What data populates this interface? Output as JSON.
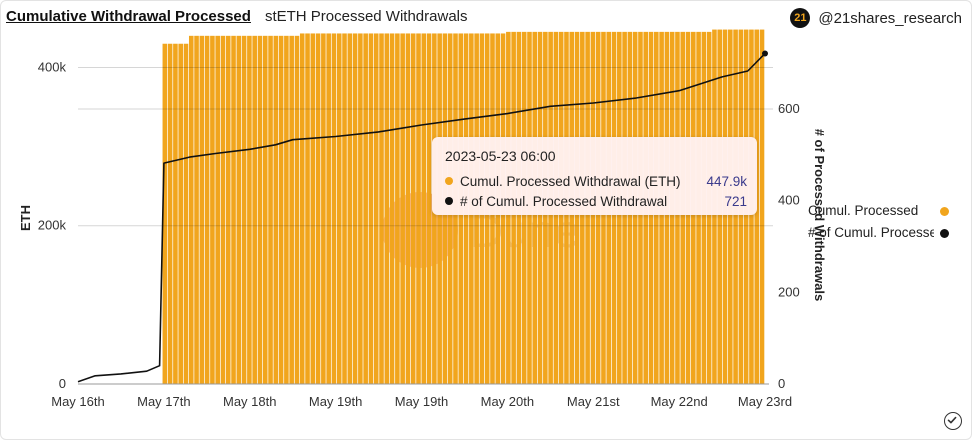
{
  "header": {
    "title": "Cumulative Withdrawal Processed",
    "subtitle": "stETH Processed Withdrawals",
    "brand_handle": "@21shares_research",
    "brand_logo_text": "21"
  },
  "tooltip": {
    "date": "2023-05-23 06:00",
    "rows": [
      {
        "label": "Cumul. Processed Withdrawal (ETH)",
        "value": "447.9k",
        "color": "#f1a51d"
      },
      {
        "label": "# of Cumul. Processed Withdrawal",
        "value": "721",
        "color": "#111111"
      }
    ]
  },
  "legend": [
    {
      "label": "Cumul. Processed",
      "color": "#f1a51d"
    },
    {
      "label": "# of Cumul. Processed Withdrawal",
      "color": "#111111"
    }
  ],
  "watermark": "Dune",
  "footer": {
    "icon": "check-circle-icon"
  },
  "chart_data": {
    "type": "bar+line",
    "x_tick_labels": [
      "May 16th",
      "May 17th",
      "May 18th",
      "May 19th",
      "May 19th",
      "May 20th",
      "May 21st",
      "May 22nd",
      "May 23rd"
    ],
    "y_left": {
      "label": "ETH",
      "ticks": [
        "0",
        "200k",
        "400k"
      ],
      "range": [
        0,
        460000
      ]
    },
    "y_right": {
      "label": "# of Processed Withdrawals",
      "ticks": [
        "0",
        "200",
        "400",
        "600"
      ],
      "range": [
        0,
        720
      ]
    },
    "grid": "horizontal",
    "colors": {
      "bars": "#f1a51d",
      "line": "#111111"
    },
    "bar_series": {
      "name": "Cumul. Processed",
      "axis": "left",
      "steps": [
        {
          "from": 0,
          "to": 1,
          "value": 0
        },
        {
          "from": 1,
          "to": 1.3,
          "value": 430000
        },
        {
          "from": 1.3,
          "to": 2.6,
          "value": 440000
        },
        {
          "from": 2.6,
          "to": 5.0,
          "value": 443000
        },
        {
          "from": 5.0,
          "to": 7.4,
          "value": 445000
        },
        {
          "from": 7.4,
          "to": 8.0,
          "value": 447900
        }
      ]
    },
    "line_series": {
      "name": "# of Cumul. Processed Withdrawal",
      "axis": "right",
      "points": [
        [
          0.0,
          5
        ],
        [
          0.2,
          18
        ],
        [
          0.5,
          22
        ],
        [
          0.8,
          28
        ],
        [
          0.95,
          40
        ],
        [
          1.0,
          482
        ],
        [
          1.3,
          495
        ],
        [
          1.6,
          503
        ],
        [
          2.0,
          512
        ],
        [
          2.3,
          522
        ],
        [
          2.5,
          533
        ],
        [
          3.0,
          540
        ],
        [
          3.5,
          550
        ],
        [
          4.0,
          565
        ],
        [
          4.5,
          578
        ],
        [
          5.0,
          590
        ],
        [
          5.5,
          606
        ],
        [
          6.0,
          613
        ],
        [
          6.5,
          624
        ],
        [
          7.0,
          640
        ],
        [
          7.5,
          670
        ],
        [
          7.8,
          683
        ],
        [
          8.0,
          721
        ]
      ]
    },
    "hover_marker": {
      "x": 8.0,
      "y_right": 721
    }
  }
}
